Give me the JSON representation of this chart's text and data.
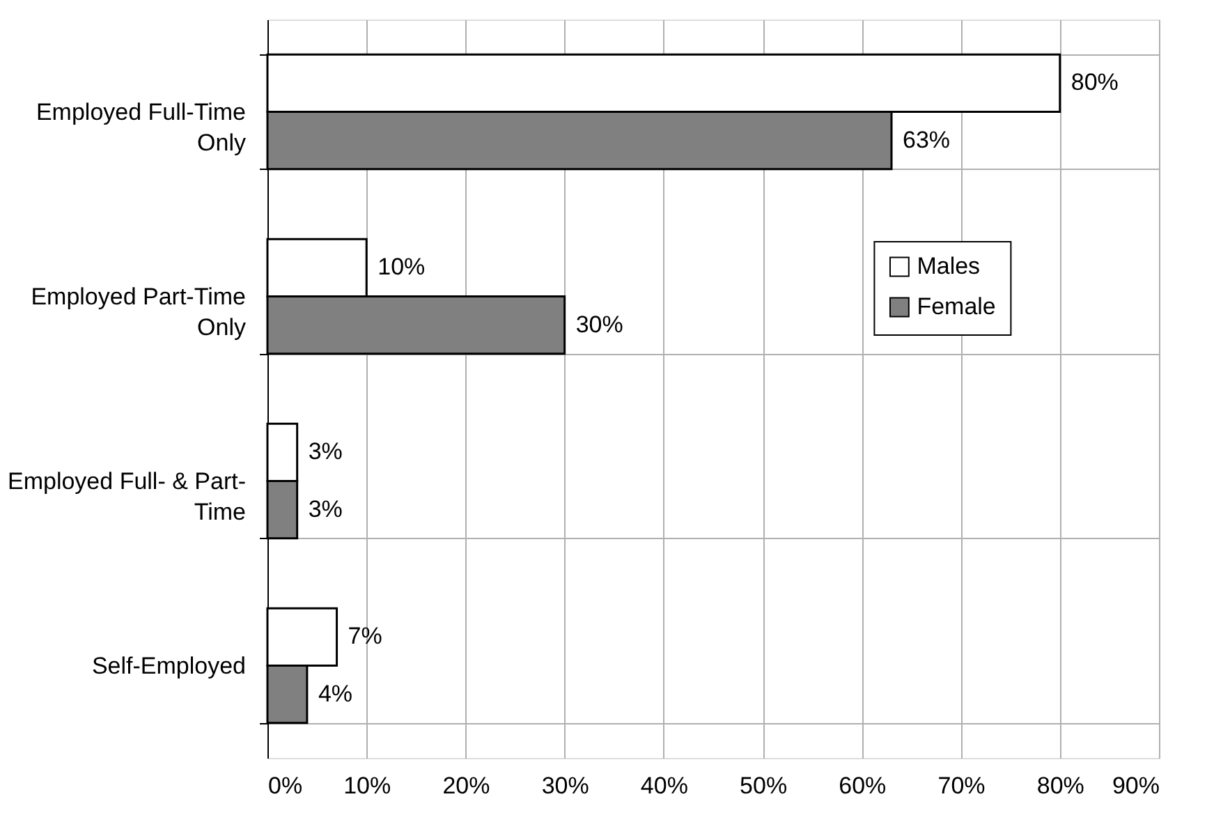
{
  "chart_data": {
    "type": "bar",
    "orientation": "horizontal",
    "categories": [
      "Employed Full-Time Only",
      "Employed Part-Time Only",
      "Employed Full- & Part-Time",
      "Self-Employed"
    ],
    "series": [
      {
        "name": "Males",
        "color": "#ffffff",
        "values": [
          80,
          10,
          3,
          7
        ],
        "value_labels": [
          "80%",
          "10%",
          "3%",
          "7%"
        ]
      },
      {
        "name": "Female",
        "color": "#808080",
        "values": [
          63,
          30,
          3,
          4
        ],
        "value_labels": [
          "63%",
          "30%",
          "3%",
          "4%"
        ]
      }
    ],
    "xlim": [
      0,
      90
    ],
    "xticks": [
      {
        "value": 0,
        "label": "0%"
      },
      {
        "value": 10,
        "label": "10%"
      },
      {
        "value": 20,
        "label": "20%"
      },
      {
        "value": 30,
        "label": "30%"
      },
      {
        "value": 40,
        "label": "40%"
      },
      {
        "value": 50,
        "label": "50%"
      },
      {
        "value": 60,
        "label": "60%"
      },
      {
        "value": 70,
        "label": "70%"
      },
      {
        "value": 80,
        "label": "80%"
      },
      {
        "value": 90,
        "label": "90%"
      }
    ],
    "grid": true,
    "legend": "right"
  }
}
